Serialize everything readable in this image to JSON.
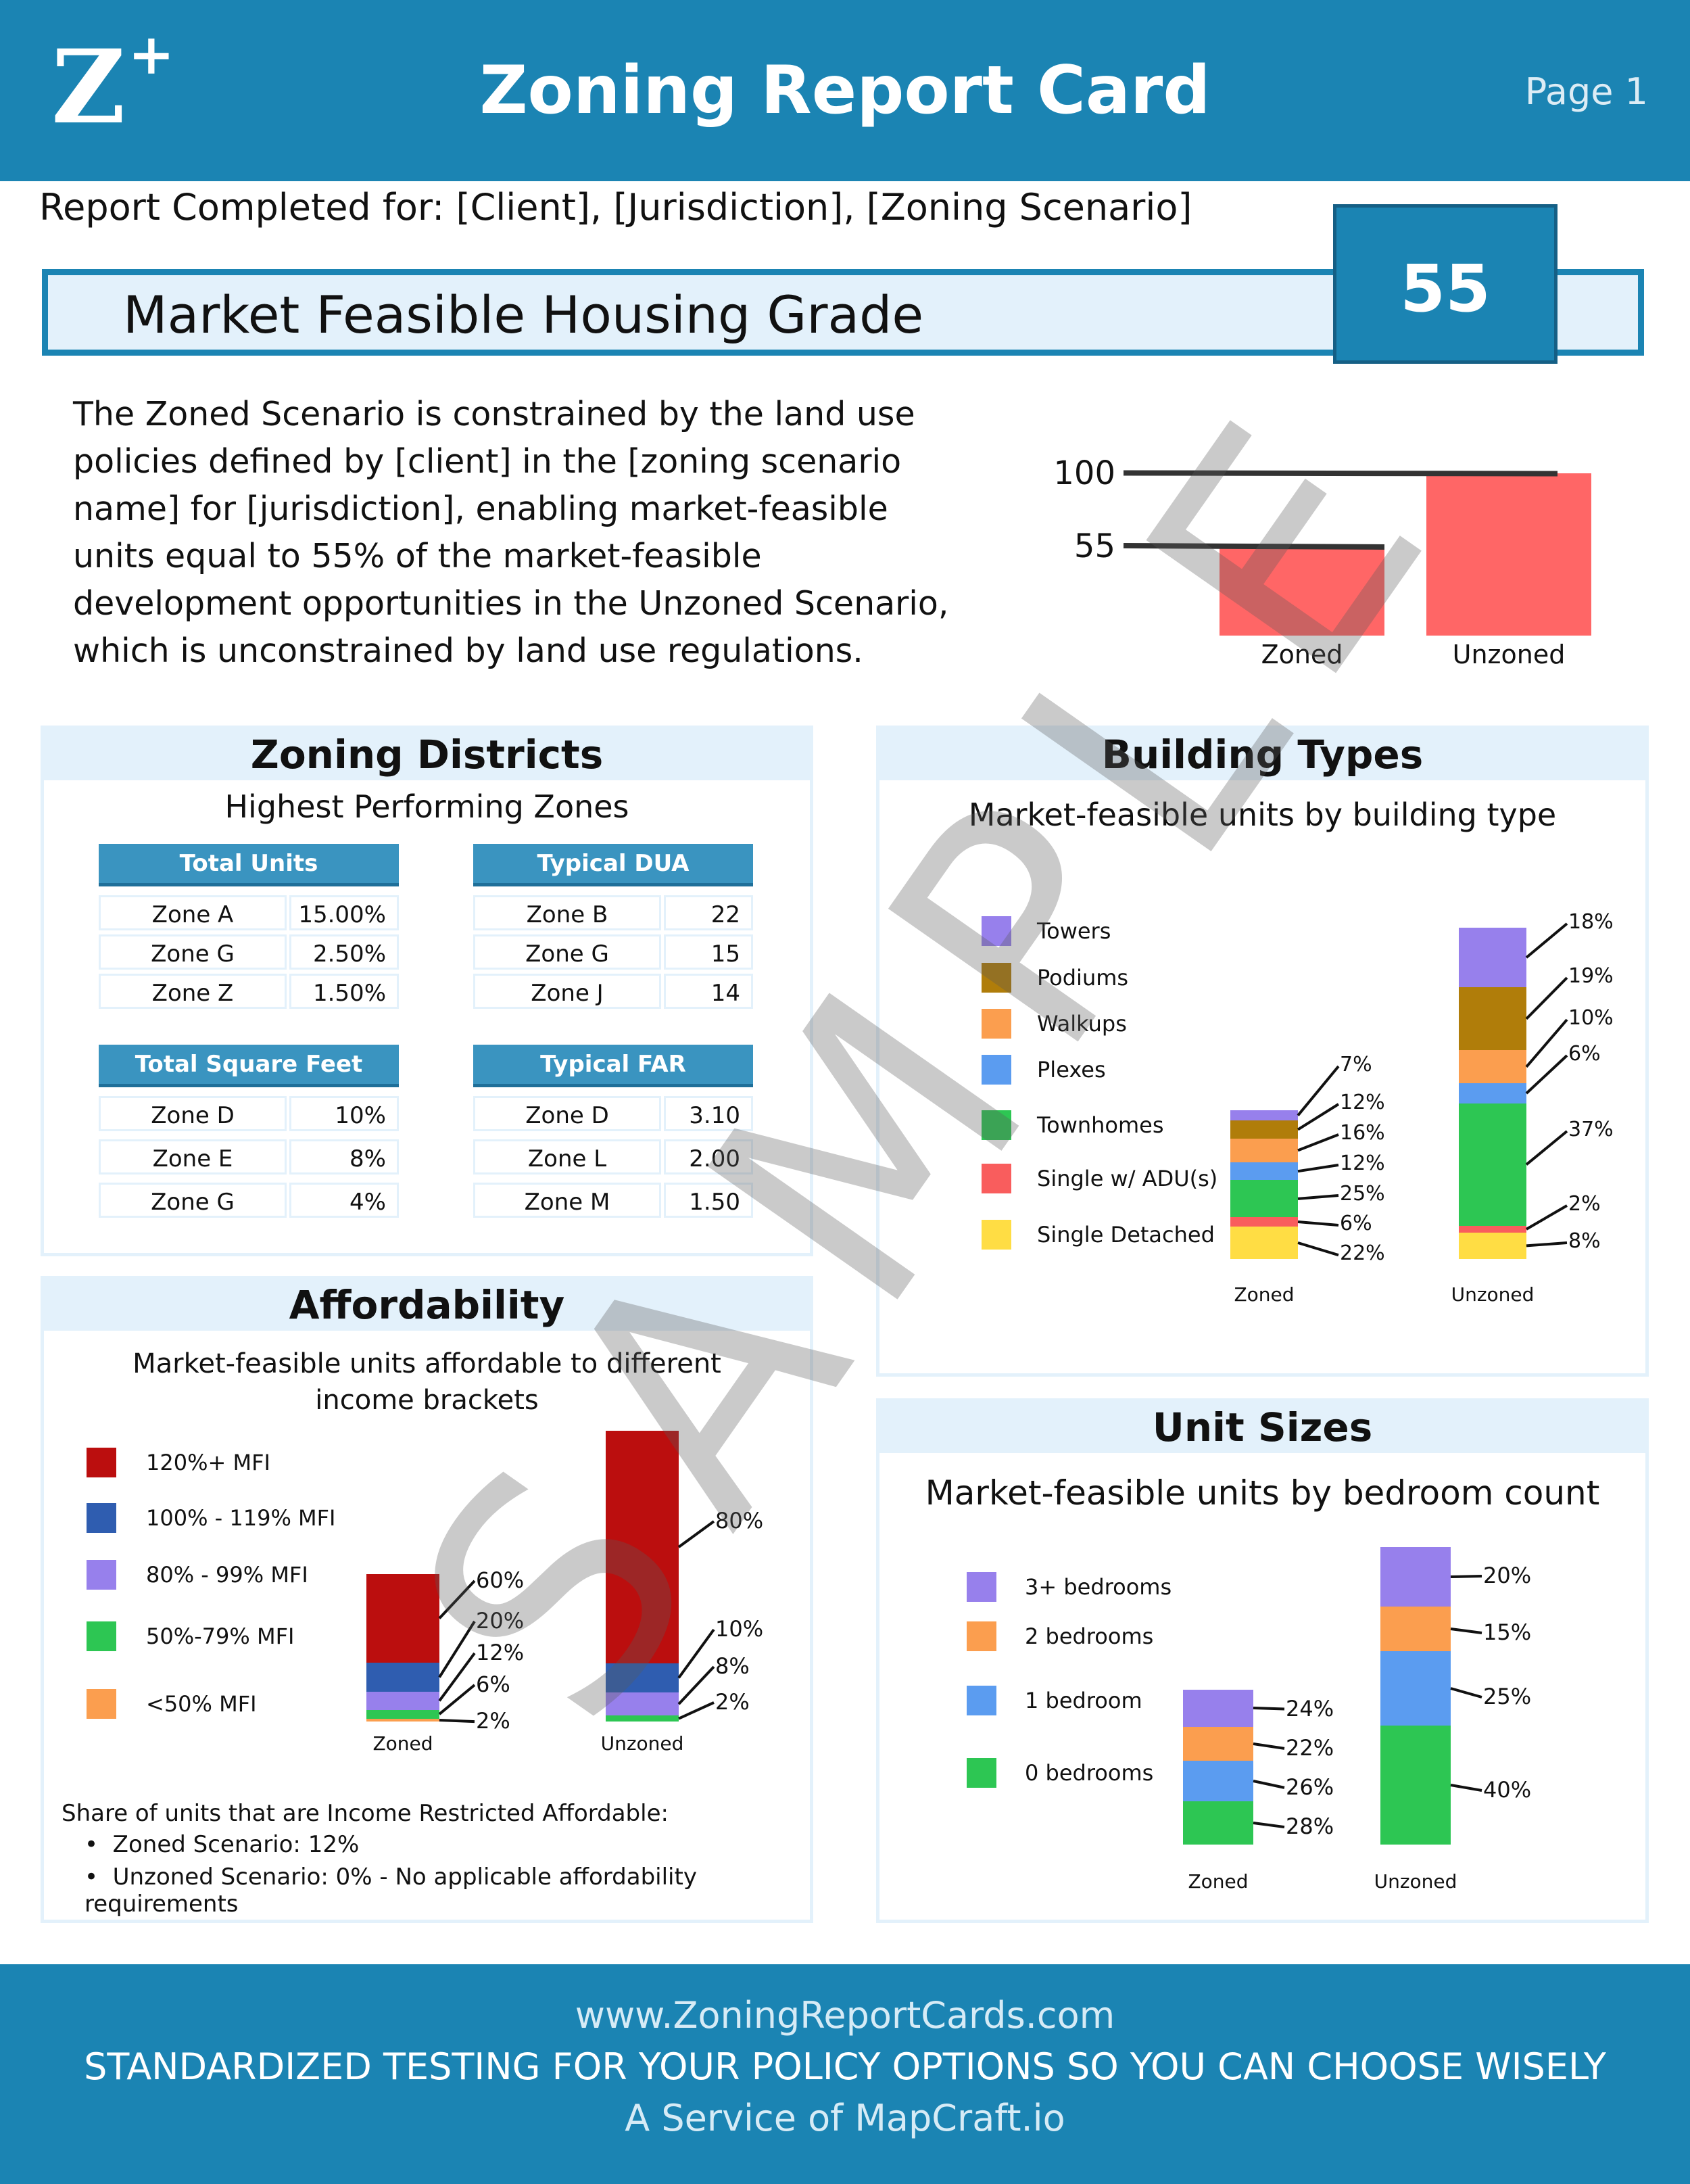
{
  "header": {
    "logo_text": "Z",
    "logo_sup": "+",
    "title": "Zoning Report Card",
    "page": "Page 1",
    "bg_color": "#1b84b3"
  },
  "report_for": "Report Completed for: [Client], [Jurisdiction], [Zoning Scenario]",
  "grade": {
    "title": "Market Feasible Housing Grade",
    "value": "55"
  },
  "summary": "The Zoned Scenario is constrained by the land use policies defined by [client] in the [zoning scenario name] for [jurisdiction], enabling market-feasible units equal to 55% of the market-feasible development opportunities in the Unzoned Scenario, which is unconstrained by land use regulations.",
  "zoning_districts": {
    "title": "Zoning Districts",
    "subtitle": "Highest Performing Zones",
    "tables": [
      {
        "header": "Total Units",
        "rows": [
          [
            "Zone A",
            "15.00%"
          ],
          [
            "Zone G",
            "2.50%"
          ],
          [
            "Zone Z",
            "1.50%"
          ]
        ]
      },
      {
        "header": "Typical DUA",
        "rows": [
          [
            "Zone B",
            "22"
          ],
          [
            "Zone G",
            "15"
          ],
          [
            "Zone J",
            "14"
          ]
        ]
      },
      {
        "header": "Total Square Feet",
        "rows": [
          [
            "Zone D",
            "10%"
          ],
          [
            "Zone E",
            "8%"
          ],
          [
            "Zone G",
            "4%"
          ]
        ]
      },
      {
        "header": "Typical FAR",
        "rows": [
          [
            "Zone D",
            "3.10"
          ],
          [
            "Zone L",
            "2.00"
          ],
          [
            "Zone M",
            "1.50"
          ]
        ]
      }
    ]
  },
  "building_types": {
    "title": "Building Types",
    "subtitle": "Market-feasible units by building type"
  },
  "affordability": {
    "title": "Affordability",
    "subtitle_line1": "Market-feasible units affordable to different",
    "subtitle_line2": "income brackets",
    "share_title": "Share of units that are Income Restricted Affordable:",
    "bullets": [
      "Zoned Scenario: 12%",
      "Unzoned Scenario: 0% - No applicable affordability requirements"
    ]
  },
  "unit_sizes": {
    "title": "Unit Sizes",
    "subtitle": "Market-feasible units by bedroom count"
  },
  "footer": {
    "url": "www.ZoningReportCards.com",
    "tagline": "STANDARDIZED TESTING FOR YOUR POLICY OPTIONS SO YOU CAN CHOOSE WISELY",
    "service": "A Service of MapCraft.io"
  },
  "watermark": "SAMPLE",
  "chart_data": [
    {
      "id": "grade",
      "type": "bar",
      "categories": [
        "Zoned",
        "Unzoned"
      ],
      "values": [
        55,
        100
      ],
      "reference_lines": [
        {
          "label": "100",
          "value": 100
        },
        {
          "label": "55",
          "value": 55
        }
      ],
      "bar_color": "#ff6666",
      "ylim": [
        0,
        100
      ]
    },
    {
      "id": "building_types",
      "type": "bar",
      "stacked": true,
      "categories": [
        "Zoned",
        "Unzoned"
      ],
      "series": [
        {
          "name": "Single Detached",
          "color": "#ffdd44",
          "values": [
            22,
            8
          ]
        },
        {
          "name": "Single w/ ADU(s)",
          "color": "#f95d5d",
          "values": [
            6,
            2
          ]
        },
        {
          "name": "Townhomes",
          "color": "#2dc653",
          "values": [
            25,
            37
          ]
        },
        {
          "name": "Plexes",
          "color": "#5b9cf0",
          "values": [
            12,
            6
          ]
        },
        {
          "name": "Walkups",
          "color": "#fb9e4f",
          "values": [
            16,
            10
          ]
        },
        {
          "name": "Podiums",
          "color": "#b07d0a",
          "values": [
            12,
            19
          ]
        },
        {
          "name": "Towers",
          "color": "#9780ec",
          "values": [
            7,
            18
          ]
        }
      ],
      "legend_order": [
        "Towers",
        "Podiums",
        "Walkups",
        "Plexes",
        "Townhomes",
        "Single w/ ADU(s)",
        "Single Detached"
      ],
      "label_suffix": "%"
    },
    {
      "id": "affordability",
      "type": "bar",
      "stacked": true,
      "categories": [
        "Zoned",
        "Unzoned"
      ],
      "series": [
        {
          "name": "<50% MFI",
          "color": "#fb9e4f",
          "values": [
            2,
            0
          ]
        },
        {
          "name": "50%-79% MFI",
          "color": "#2dc653",
          "values": [
            6,
            2
          ]
        },
        {
          "name": "80% - 99% MFI",
          "color": "#9780ec",
          "values": [
            12,
            8
          ]
        },
        {
          "name": "100% - 119% MFI",
          "color": "#2f5db0",
          "values": [
            20,
            10
          ]
        },
        {
          "name": "120%+ MFI",
          "color": "#bb0e0e",
          "values": [
            60,
            80
          ]
        }
      ],
      "legend_order": [
        "120%+ MFI",
        "100% - 119% MFI",
        "80% - 99% MFI",
        "50%-79% MFI",
        "<50% MFI"
      ],
      "label_suffix": "%"
    },
    {
      "id": "unit_sizes",
      "type": "bar",
      "stacked": true,
      "categories": [
        "Zoned",
        "Unzoned"
      ],
      "series": [
        {
          "name": "0 bedrooms",
          "color": "#2dc653",
          "values": [
            28,
            40
          ]
        },
        {
          "name": "1 bedroom",
          "color": "#5b9cf0",
          "values": [
            26,
            25
          ]
        },
        {
          "name": "2 bedrooms",
          "color": "#fb9e4f",
          "values": [
            22,
            15
          ]
        },
        {
          "name": "3+ bedrooms",
          "color": "#9780ec",
          "values": [
            24,
            20
          ]
        }
      ],
      "legend_order": [
        "3+ bedrooms",
        "2 bedrooms",
        "1 bedroom",
        "0 bedrooms"
      ],
      "label_suffix": "%"
    }
  ]
}
